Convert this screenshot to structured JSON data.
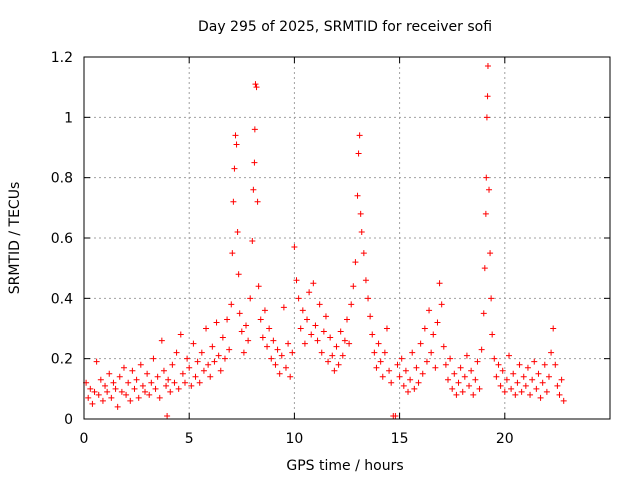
{
  "chart_data": {
    "type": "scatter",
    "title": "Day 295 of 2025, SRMTID for receiver sofi",
    "xlabel": "GPS time / hours",
    "ylabel": "SRMTID / TECUs",
    "xlim": [
      0,
      25
    ],
    "ylim": [
      0,
      1.2
    ],
    "grid": true,
    "marker": "+",
    "colors": {
      "series": "#ff0000",
      "axis": "#000000",
      "grid": "#a0a0a0"
    },
    "x_ticks": [
      {
        "value": 0,
        "label": "0"
      },
      {
        "value": 5,
        "label": "5"
      },
      {
        "value": 10,
        "label": "10"
      },
      {
        "value": 15,
        "label": "15"
      },
      {
        "value": 20,
        "label": "20"
      }
    ],
    "y_ticks": [
      {
        "value": 0,
        "label": "0"
      },
      {
        "value": 0.2,
        "label": "0.2"
      },
      {
        "value": 0.4,
        "label": "0.4"
      },
      {
        "value": 0.6,
        "label": "0.6"
      },
      {
        "value": 0.8,
        "label": "0.8"
      },
      {
        "value": 1.0,
        "label": "1"
      },
      {
        "value": 1.2,
        "label": "1.2"
      }
    ],
    "series": [
      {
        "name": "SRMTID",
        "points": [
          [
            0.1,
            0.12
          ],
          [
            0.2,
            0.07
          ],
          [
            0.3,
            0.1
          ],
          [
            0.4,
            0.05
          ],
          [
            0.5,
            0.09
          ],
          [
            0.6,
            0.19
          ],
          [
            0.7,
            0.08
          ],
          [
            0.8,
            0.13
          ],
          [
            0.9,
            0.06
          ],
          [
            1.0,
            0.11
          ],
          [
            1.1,
            0.09
          ],
          [
            1.2,
            0.15
          ],
          [
            1.3,
            0.07
          ],
          [
            1.4,
            0.12
          ],
          [
            1.5,
            0.1
          ],
          [
            1.6,
            0.04
          ],
          [
            1.7,
            0.14
          ],
          [
            1.8,
            0.09
          ],
          [
            1.9,
            0.17
          ],
          [
            2.0,
            0.08
          ],
          [
            2.1,
            0.12
          ],
          [
            2.2,
            0.06
          ],
          [
            2.3,
            0.16
          ],
          [
            2.4,
            0.1
          ],
          [
            2.5,
            0.13
          ],
          [
            2.6,
            0.07
          ],
          [
            2.7,
            0.18
          ],
          [
            2.8,
            0.11
          ],
          [
            2.9,
            0.09
          ],
          [
            3.0,
            0.15
          ],
          [
            3.1,
            0.08
          ],
          [
            3.2,
            0.12
          ],
          [
            3.3,
            0.2
          ],
          [
            3.4,
            0.1
          ],
          [
            3.5,
            0.14
          ],
          [
            3.6,
            0.07
          ],
          [
            3.7,
            0.26
          ],
          [
            3.8,
            0.16
          ],
          [
            3.9,
            0.11
          ],
          [
            3.95,
            0.01
          ],
          [
            4.0,
            0.13
          ],
          [
            4.1,
            0.09
          ],
          [
            4.2,
            0.18
          ],
          [
            4.3,
            0.12
          ],
          [
            4.4,
            0.22
          ],
          [
            4.5,
            0.1
          ],
          [
            4.6,
            0.28
          ],
          [
            4.7,
            0.15
          ],
          [
            4.8,
            0.12
          ],
          [
            4.9,
            0.2
          ],
          [
            5.0,
            0.17
          ],
          [
            5.1,
            0.11
          ],
          [
            5.2,
            0.25
          ],
          [
            5.3,
            0.14
          ],
          [
            5.4,
            0.19
          ],
          [
            5.5,
            0.12
          ],
          [
            5.6,
            0.22
          ],
          [
            5.7,
            0.16
          ],
          [
            5.8,
            0.3
          ],
          [
            5.9,
            0.18
          ],
          [
            6.0,
            0.14
          ],
          [
            6.1,
            0.24
          ],
          [
            6.2,
            0.19
          ],
          [
            6.3,
            0.32
          ],
          [
            6.4,
            0.21
          ],
          [
            6.5,
            0.16
          ],
          [
            6.6,
            0.27
          ],
          [
            6.7,
            0.2
          ],
          [
            6.8,
            0.33
          ],
          [
            6.9,
            0.23
          ],
          [
            7.0,
            0.38
          ],
          [
            7.05,
            0.55
          ],
          [
            7.1,
            0.72
          ],
          [
            7.15,
            0.83
          ],
          [
            7.2,
            0.94
          ],
          [
            7.25,
            0.91
          ],
          [
            7.3,
            0.62
          ],
          [
            7.35,
            0.48
          ],
          [
            7.4,
            0.35
          ],
          [
            7.5,
            0.29
          ],
          [
            7.6,
            0.22
          ],
          [
            7.7,
            0.31
          ],
          [
            7.8,
            0.26
          ],
          [
            7.9,
            0.4
          ],
          [
            8.0,
            0.59
          ],
          [
            8.05,
            0.76
          ],
          [
            8.1,
            0.85
          ],
          [
            8.12,
            0.96
          ],
          [
            8.15,
            1.11
          ],
          [
            8.2,
            1.1
          ],
          [
            8.25,
            0.72
          ],
          [
            8.3,
            0.44
          ],
          [
            8.4,
            0.33
          ],
          [
            8.5,
            0.27
          ],
          [
            8.6,
            0.36
          ],
          [
            8.7,
            0.24
          ],
          [
            8.8,
            0.3
          ],
          [
            8.9,
            0.2
          ],
          [
            9.0,
            0.26
          ],
          [
            9.1,
            0.18
          ],
          [
            9.2,
            0.23
          ],
          [
            9.3,
            0.15
          ],
          [
            9.4,
            0.21
          ],
          [
            9.5,
            0.37
          ],
          [
            9.6,
            0.17
          ],
          [
            9.7,
            0.25
          ],
          [
            9.8,
            0.14
          ],
          [
            9.9,
            0.22
          ],
          [
            10.0,
            0.57
          ],
          [
            10.1,
            0.46
          ],
          [
            10.2,
            0.4
          ],
          [
            10.3,
            0.3
          ],
          [
            10.4,
            0.36
          ],
          [
            10.5,
            0.25
          ],
          [
            10.6,
            0.33
          ],
          [
            10.7,
            0.42
          ],
          [
            10.8,
            0.28
          ],
          [
            10.9,
            0.45
          ],
          [
            11.0,
            0.31
          ],
          [
            11.1,
            0.26
          ],
          [
            11.2,
            0.38
          ],
          [
            11.3,
            0.22
          ],
          [
            11.4,
            0.29
          ],
          [
            11.5,
            0.34
          ],
          [
            11.6,
            0.19
          ],
          [
            11.7,
            0.27
          ],
          [
            11.8,
            0.21
          ],
          [
            11.9,
            0.16
          ],
          [
            12.0,
            0.24
          ],
          [
            12.1,
            0.18
          ],
          [
            12.2,
            0.29
          ],
          [
            12.3,
            0.21
          ],
          [
            12.4,
            0.26
          ],
          [
            12.5,
            0.33
          ],
          [
            12.6,
            0.25
          ],
          [
            12.7,
            0.38
          ],
          [
            12.8,
            0.44
          ],
          [
            12.9,
            0.52
          ],
          [
            13.0,
            0.74
          ],
          [
            13.05,
            0.88
          ],
          [
            13.1,
            0.94
          ],
          [
            13.15,
            0.68
          ],
          [
            13.2,
            0.62
          ],
          [
            13.3,
            0.55
          ],
          [
            13.4,
            0.46
          ],
          [
            13.5,
            0.4
          ],
          [
            13.6,
            0.34
          ],
          [
            13.7,
            0.28
          ],
          [
            13.8,
            0.22
          ],
          [
            13.9,
            0.17
          ],
          [
            14.0,
            0.25
          ],
          [
            14.1,
            0.19
          ],
          [
            14.2,
            0.14
          ],
          [
            14.3,
            0.22
          ],
          [
            14.4,
            0.3
          ],
          [
            14.5,
            0.16
          ],
          [
            14.6,
            0.12
          ],
          [
            14.7,
            0.01
          ],
          [
            14.8,
            0.01
          ],
          [
            14.9,
            0.18
          ],
          [
            15.0,
            0.14
          ],
          [
            15.1,
            0.2
          ],
          [
            15.2,
            0.11
          ],
          [
            15.3,
            0.16
          ],
          [
            15.4,
            0.09
          ],
          [
            15.5,
            0.13
          ],
          [
            15.6,
            0.22
          ],
          [
            15.7,
            0.1
          ],
          [
            15.8,
            0.17
          ],
          [
            15.9,
            0.12
          ],
          [
            16.0,
            0.25
          ],
          [
            16.1,
            0.15
          ],
          [
            16.2,
            0.3
          ],
          [
            16.3,
            0.19
          ],
          [
            16.4,
            0.36
          ],
          [
            16.5,
            0.22
          ],
          [
            16.6,
            0.28
          ],
          [
            16.7,
            0.17
          ],
          [
            16.8,
            0.32
          ],
          [
            16.9,
            0.45
          ],
          [
            17.0,
            0.38
          ],
          [
            17.1,
            0.24
          ],
          [
            17.2,
            0.18
          ],
          [
            17.3,
            0.13
          ],
          [
            17.4,
            0.2
          ],
          [
            17.5,
            0.1
          ],
          [
            17.6,
            0.15
          ],
          [
            17.7,
            0.08
          ],
          [
            17.8,
            0.12
          ],
          [
            17.9,
            0.17
          ],
          [
            18.0,
            0.09
          ],
          [
            18.1,
            0.14
          ],
          [
            18.2,
            0.21
          ],
          [
            18.3,
            0.11
          ],
          [
            18.4,
            0.16
          ],
          [
            18.5,
            0.08
          ],
          [
            18.6,
            0.13
          ],
          [
            18.7,
            0.19
          ],
          [
            18.8,
            0.1
          ],
          [
            18.9,
            0.23
          ],
          [
            19.0,
            0.35
          ],
          [
            19.05,
            0.5
          ],
          [
            19.1,
            0.68
          ],
          [
            19.12,
            0.8
          ],
          [
            19.15,
            1.0
          ],
          [
            19.18,
            1.07
          ],
          [
            19.2,
            1.17
          ],
          [
            19.25,
            0.76
          ],
          [
            19.3,
            0.55
          ],
          [
            19.35,
            0.4
          ],
          [
            19.4,
            0.28
          ],
          [
            19.5,
            0.2
          ],
          [
            19.6,
            0.14
          ],
          [
            19.7,
            0.18
          ],
          [
            19.8,
            0.11
          ],
          [
            19.9,
            0.16
          ],
          [
            20.0,
            0.09
          ],
          [
            20.1,
            0.13
          ],
          [
            20.2,
            0.21
          ],
          [
            20.3,
            0.1
          ],
          [
            20.4,
            0.15
          ],
          [
            20.5,
            0.08
          ],
          [
            20.6,
            0.12
          ],
          [
            20.7,
            0.18
          ],
          [
            20.8,
            0.09
          ],
          [
            20.9,
            0.14
          ],
          [
            21.0,
            0.11
          ],
          [
            21.1,
            0.17
          ],
          [
            21.2,
            0.08
          ],
          [
            21.3,
            0.13
          ],
          [
            21.4,
            0.19
          ],
          [
            21.5,
            0.1
          ],
          [
            21.6,
            0.15
          ],
          [
            21.7,
            0.07
          ],
          [
            21.8,
            0.12
          ],
          [
            21.9,
            0.18
          ],
          [
            22.0,
            0.09
          ],
          [
            22.1,
            0.14
          ],
          [
            22.2,
            0.22
          ],
          [
            22.3,
            0.3
          ],
          [
            22.4,
            0.18
          ],
          [
            22.5,
            0.11
          ],
          [
            22.6,
            0.08
          ],
          [
            22.7,
            0.13
          ],
          [
            22.8,
            0.06
          ]
        ]
      }
    ]
  }
}
